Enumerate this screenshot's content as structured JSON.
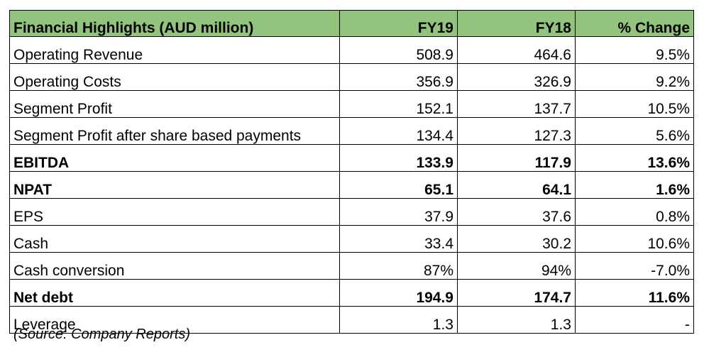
{
  "table": {
    "headers": [
      "Financial Highlights (AUD million)",
      "FY19",
      "FY18",
      "% Change"
    ],
    "rows": [
      {
        "label": "Operating Revenue",
        "fy19": "508.9",
        "fy18": "464.6",
        "change": "9.5%",
        "bold": false
      },
      {
        "label": "Operating Costs",
        "fy19": "356.9",
        "fy18": "326.9",
        "change": "9.2%",
        "bold": false
      },
      {
        "label": "Segment Profit",
        "fy19": "152.1",
        "fy18": "137.7",
        "change": "10.5%",
        "bold": false
      },
      {
        "label": "Segment Profit after share based payments",
        "fy19": "134.4",
        "fy18": "127.3",
        "change": "5.6%",
        "bold": false
      },
      {
        "label": "EBITDA",
        "fy19": "133.9",
        "fy18": "117.9",
        "change": "13.6%",
        "bold": true
      },
      {
        "label": "NPAT",
        "fy19": "65.1",
        "fy18": "64.1",
        "change": "1.6%",
        "bold": true
      },
      {
        "label": "EPS",
        "fy19": "37.9",
        "fy18": "37.6",
        "change": "0.8%",
        "bold": false
      },
      {
        "label": "Cash",
        "fy19": "33.4",
        "fy18": "30.2",
        "change": "10.6%",
        "bold": false
      },
      {
        "label": "Cash conversion",
        "fy19": "87%",
        "fy18": "94%",
        "change": "-7.0%",
        "bold": false
      },
      {
        "label": "Net debt",
        "fy19": "194.9",
        "fy18": "174.7",
        "change": "11.6%",
        "bold": true
      },
      {
        "label": "Leverage",
        "fy19": "1.3",
        "fy18": "1.3",
        "change": "-",
        "bold": false
      }
    ]
  },
  "source_note": "(Source: Company Reports)",
  "colors": {
    "header_fill": "#93c47d",
    "border": "#000000"
  }
}
